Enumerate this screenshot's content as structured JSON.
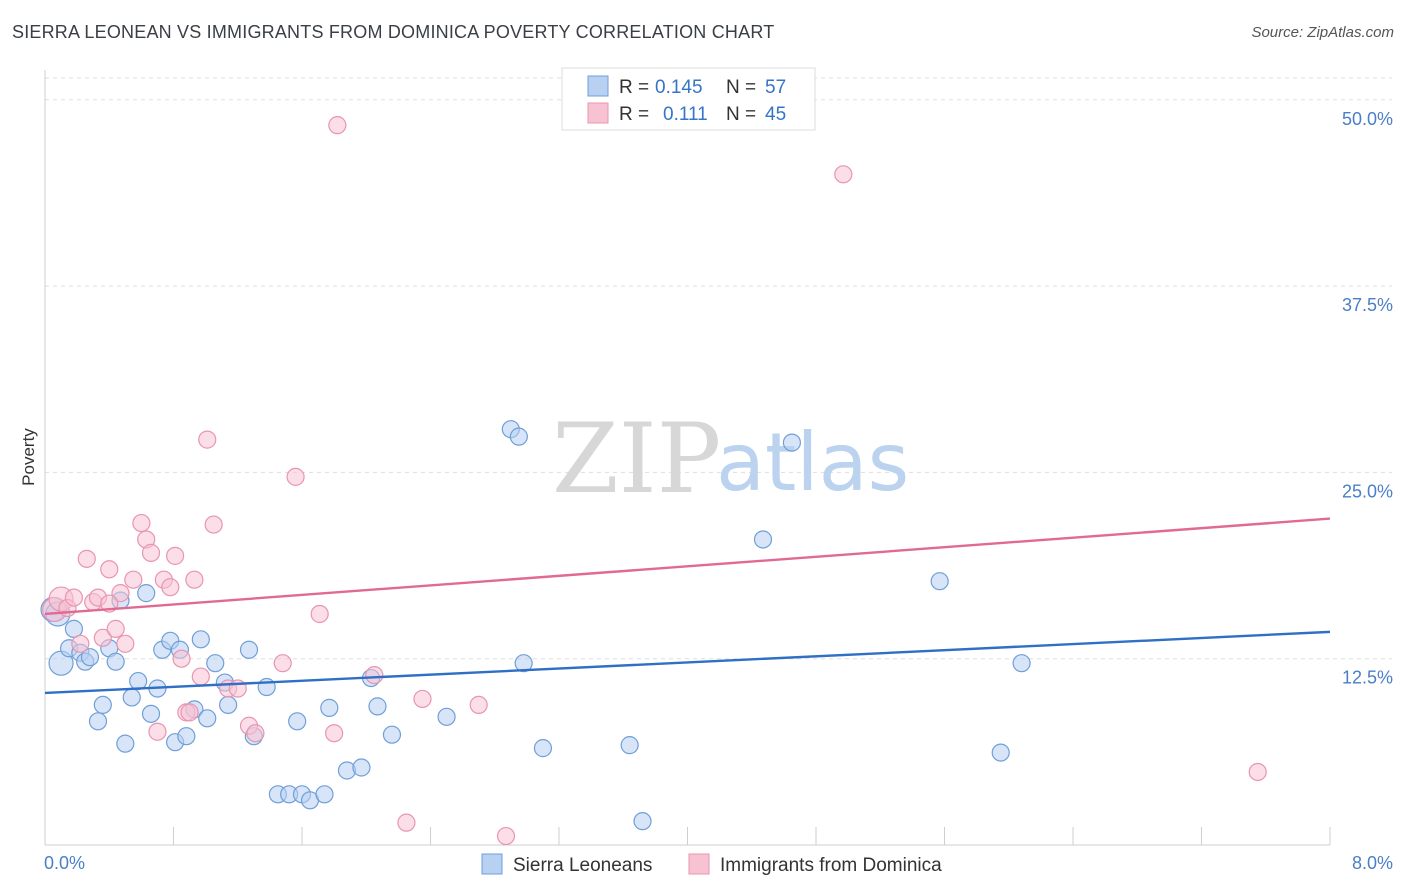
{
  "title": "SIERRA LEONEAN VS IMMIGRANTS FROM DOMINICA POVERTY CORRELATION CHART",
  "source": "Source: ZipAtlas.com",
  "watermark": {
    "zip": "ZIP",
    "atlas": "atlas"
  },
  "colors": {
    "blue_fill": "#b8d0f2",
    "blue_stroke": "#6f9fd8",
    "blue_line": "#2f6fc6",
    "pink_fill": "#f7c3d3",
    "pink_stroke": "#e895b0",
    "pink_line": "#e06a93",
    "grid": "#dddddd",
    "tick_label": "#4a7fc8"
  },
  "legend": {
    "rows": [
      {
        "r_label": "R =",
        "r_value": "0.145",
        "n_label": "N =",
        "n_value": "57"
      },
      {
        "r_label": "R =",
        "r_value": "0.111",
        "n_label": "N =",
        "n_value": "45"
      }
    ]
  },
  "chart_data": {
    "type": "scatter",
    "title": "SIERRA LEONEAN VS IMMIGRANTS FROM DOMINICA POVERTY CORRELATION CHART",
    "xlabel": "",
    "ylabel": "Poverty",
    "xlim": [
      0,
      8
    ],
    "ylim": [
      0,
      52
    ],
    "x_tick_labels": [
      "0.0%",
      "8.0%"
    ],
    "y_ticks": [
      12.5,
      25.0,
      37.5,
      50.0
    ],
    "y_tick_labels": [
      "12.5%",
      "25.0%",
      "37.5%",
      "50.0%"
    ],
    "series": [
      {
        "name": "Sierra Leoneans",
        "color": "#6f9fd8",
        "trend": {
          "x": [
            0,
            8
          ],
          "y": [
            10.2,
            14.3
          ]
        },
        "points": [
          [
            0.05,
            15.8
          ],
          [
            0.1,
            12.2
          ],
          [
            0.15,
            13.2
          ],
          [
            0.18,
            14.5
          ],
          [
            0.22,
            12.9
          ],
          [
            0.25,
            12.3
          ],
          [
            0.28,
            12.6
          ],
          [
            0.33,
            8.3
          ],
          [
            0.36,
            9.4
          ],
          [
            0.4,
            13.2
          ],
          [
            0.44,
            12.3
          ],
          [
            0.47,
            16.4
          ],
          [
            0.5,
            6.8
          ],
          [
            0.54,
            9.9
          ],
          [
            0.58,
            11.0
          ],
          [
            0.63,
            16.9
          ],
          [
            0.66,
            8.8
          ],
          [
            0.7,
            10.5
          ],
          [
            0.73,
            13.1
          ],
          [
            0.78,
            13.7
          ],
          [
            0.81,
            6.9
          ],
          [
            0.84,
            13.1
          ],
          [
            0.88,
            7.3
          ],
          [
            0.93,
            9.1
          ],
          [
            0.97,
            13.8
          ],
          [
            1.01,
            8.5
          ],
          [
            1.06,
            12.2
          ],
          [
            1.12,
            10.9
          ],
          [
            1.14,
            9.4
          ],
          [
            1.27,
            13.1
          ],
          [
            1.3,
            7.3
          ],
          [
            1.38,
            10.6
          ],
          [
            1.45,
            3.4
          ],
          [
            1.52,
            3.4
          ],
          [
            1.57,
            8.3
          ],
          [
            1.6,
            3.4
          ],
          [
            1.65,
            3.0
          ],
          [
            1.74,
            3.4
          ],
          [
            1.77,
            9.2
          ],
          [
            1.88,
            5.0
          ],
          [
            1.97,
            5.2
          ],
          [
            2.03,
            11.2
          ],
          [
            2.07,
            9.3
          ],
          [
            2.16,
            7.4
          ],
          [
            2.5,
            8.6
          ],
          [
            2.9,
            27.9
          ],
          [
            2.95,
            27.4
          ],
          [
            2.98,
            12.2
          ],
          [
            3.1,
            6.5
          ],
          [
            3.64,
            6.7
          ],
          [
            3.72,
            1.6
          ],
          [
            4.47,
            20.5
          ],
          [
            4.65,
            27.0
          ],
          [
            5.57,
            17.7
          ],
          [
            5.95,
            6.2
          ],
          [
            6.08,
            12.2
          ],
          [
            0.08,
            15.5
          ]
        ]
      },
      {
        "name": "Immigrants from Dominica",
        "color": "#e895b0",
        "trend": {
          "x": [
            0,
            8
          ],
          "y": [
            15.5,
            21.9
          ]
        },
        "points": [
          [
            0.06,
            15.8
          ],
          [
            0.1,
            16.5
          ],
          [
            0.14,
            15.9
          ],
          [
            0.18,
            16.6
          ],
          [
            0.22,
            13.5
          ],
          [
            0.26,
            19.2
          ],
          [
            0.3,
            16.3
          ],
          [
            0.33,
            16.6
          ],
          [
            0.36,
            13.9
          ],
          [
            0.4,
            18.5
          ],
          [
            0.44,
            14.5
          ],
          [
            0.47,
            16.9
          ],
          [
            0.5,
            13.5
          ],
          [
            0.55,
            17.8
          ],
          [
            0.6,
            21.6
          ],
          [
            0.63,
            20.5
          ],
          [
            0.66,
            19.6
          ],
          [
            0.7,
            7.6
          ],
          [
            0.74,
            17.8
          ],
          [
            0.78,
            17.3
          ],
          [
            0.81,
            19.4
          ],
          [
            0.85,
            12.5
          ],
          [
            0.88,
            8.9
          ],
          [
            0.93,
            17.8
          ],
          [
            0.97,
            11.3
          ],
          [
            1.01,
            27.2
          ],
          [
            1.05,
            21.5
          ],
          [
            1.14,
            10.5
          ],
          [
            1.2,
            10.5
          ],
          [
            1.27,
            8.0
          ],
          [
            1.31,
            7.5
          ],
          [
            1.48,
            12.2
          ],
          [
            1.56,
            24.7
          ],
          [
            1.71,
            15.5
          ],
          [
            1.8,
            7.5
          ],
          [
            1.82,
            48.3
          ],
          [
            2.05,
            11.4
          ],
          [
            2.25,
            1.5
          ],
          [
            2.35,
            9.8
          ],
          [
            2.7,
            9.4
          ],
          [
            2.87,
            0.6
          ],
          [
            4.97,
            45.0
          ],
          [
            7.55,
            4.9
          ],
          [
            0.9,
            8.9
          ],
          [
            0.4,
            16.2
          ]
        ]
      }
    ],
    "legend_entries": [
      "Sierra Leoneans",
      "Immigrants from Dominica"
    ]
  }
}
